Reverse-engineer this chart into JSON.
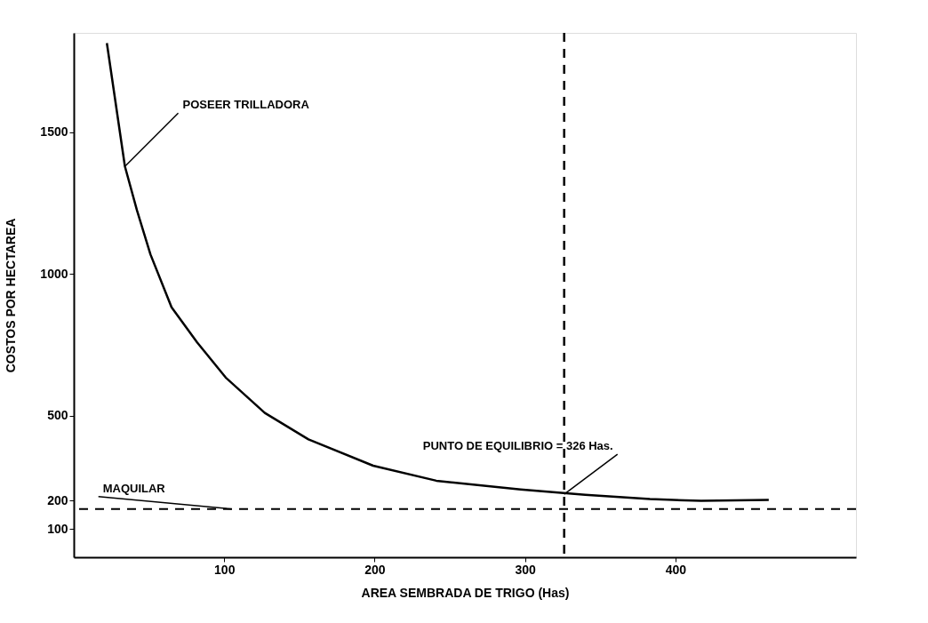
{
  "chart_data": {
    "type": "line",
    "xlabel": "AREA SEMBRADA DE TRIGO   (Has)",
    "ylabel": "COSTOS   POR   HECTAREA",
    "x": [
      22,
      34,
      42,
      51,
      65,
      82,
      101,
      127,
      156,
      199,
      241,
      297,
      340,
      383,
      417,
      462
    ],
    "series": [
      {
        "color": "#000000",
        "values": [
          1814,
          1379,
          1224,
          1068,
          882,
          758,
          634,
          509,
          416,
          323,
          270,
          239,
          220,
          205,
          199,
          202
        ]
      }
    ],
    "xlim": [
      0,
      520
    ],
    "ylim": [
      0,
      1850
    ],
    "xticks": [
      100,
      200,
      300,
      400
    ],
    "yticks": [
      100,
      200,
      500,
      1000,
      1500
    ],
    "grid": false,
    "marker": "none",
    "line_style": "solid",
    "ref_lines": [
      {
        "axis": "x",
        "value": 326,
        "line_style": "dashed",
        "color": "#000000"
      },
      {
        "axis": "y",
        "value": 170,
        "line_style": "dashed",
        "color": "#000000"
      }
    ],
    "annotations": [
      {
        "text": "POSEER TRILLADORA",
        "x": 34,
        "y": 1379
      },
      {
        "text": "MAQUILAR",
        "x": 105,
        "y": 170
      },
      {
        "text": "PUNTO DE EQUILIBRIO = 326 Has.",
        "x": 326,
        "y": 222
      }
    ]
  }
}
